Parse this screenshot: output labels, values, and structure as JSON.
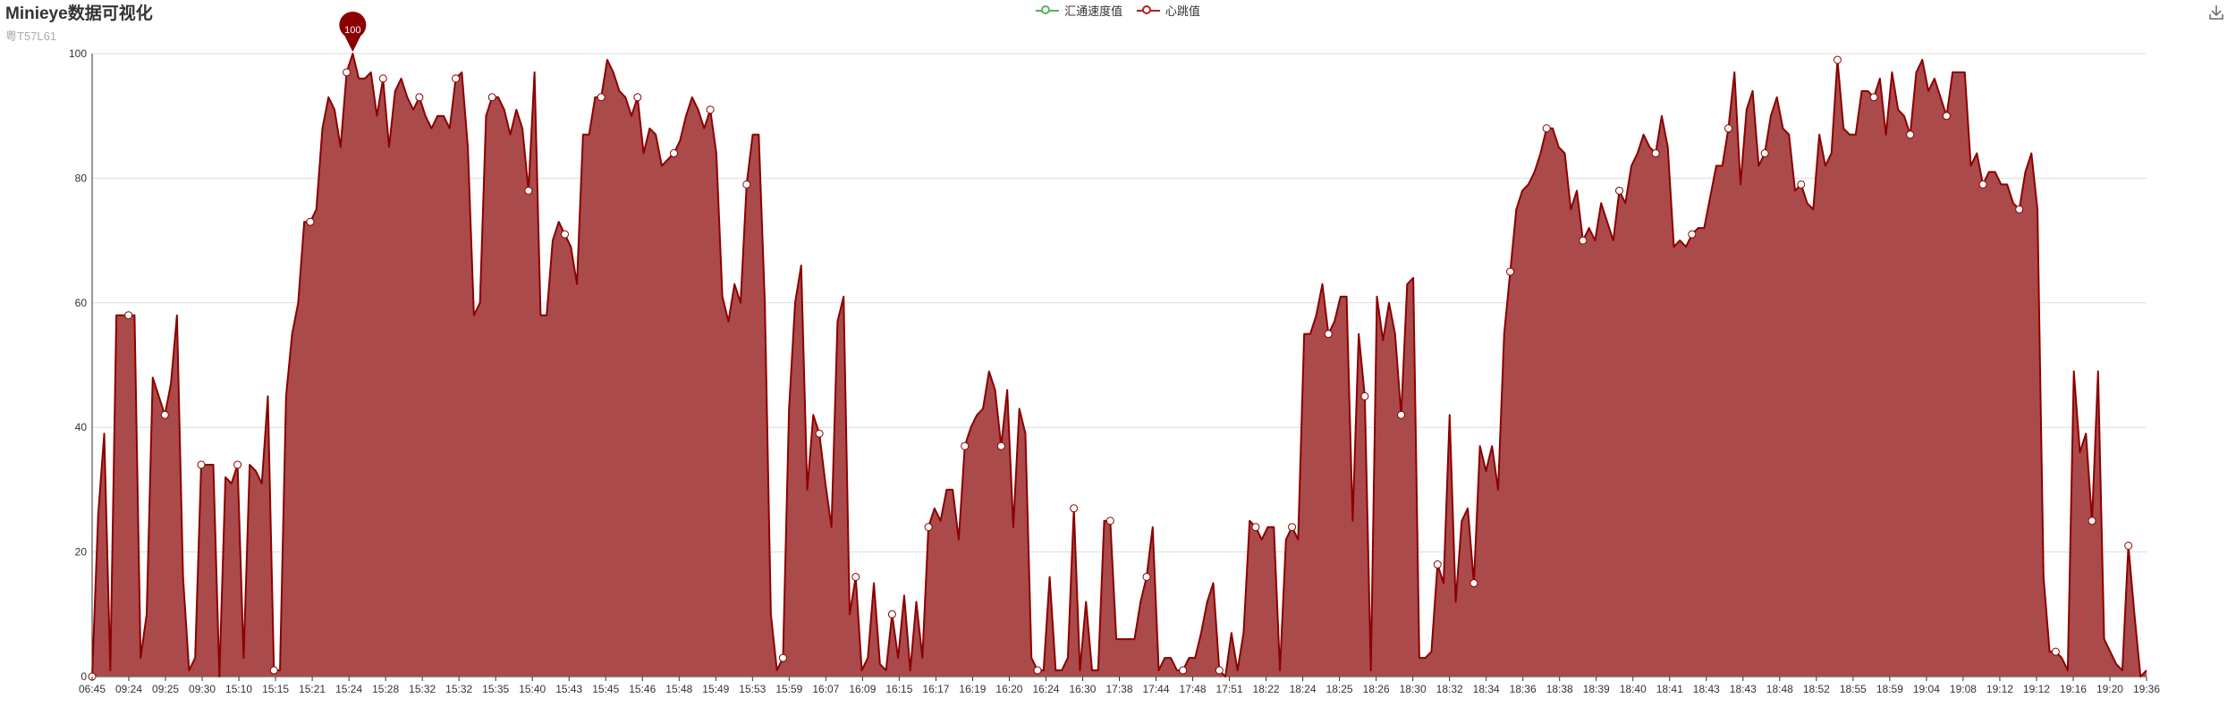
{
  "title": "Minieye数据可视化",
  "subtitle": "粤T57L61",
  "legend": [
    {
      "name": "汇通速度值",
      "color": "#5ab15a"
    },
    {
      "name": "心跳值",
      "color": "#b22222"
    }
  ],
  "toolbox": {
    "download_icon": "download-icon"
  },
  "colors": {
    "area_fill": "#ab4a4a",
    "line": "#8b0000",
    "grid": "#dddddd",
    "marker": "#8b0000"
  },
  "chart_data": {
    "type": "area",
    "title": "Minieye数据可视化",
    "subtitle": "粤T57L61",
    "ylim": [
      0,
      100
    ],
    "yticks": [
      0,
      20,
      40,
      60,
      80,
      100
    ],
    "grid": true,
    "legend_position": "top-center",
    "x_tick_labels": [
      "06:45",
      "09:24",
      "09:25",
      "09:30",
      "15:10",
      "15:15",
      "15:21",
      "15:24",
      "15:28",
      "15:32",
      "15:32",
      "15:35",
      "15:40",
      "15:43",
      "15:45",
      "15:46",
      "15:48",
      "15:49",
      "15:53",
      "15:59",
      "16:07",
      "16:09",
      "16:15",
      "16:17",
      "16:19",
      "16:20",
      "16:24",
      "16:30",
      "17:38",
      "17:44",
      "17:48",
      "17:51",
      "18:22",
      "18:24",
      "18:25",
      "18:26",
      "18:30",
      "18:32",
      "18:34",
      "18:36",
      "18:38",
      "18:39",
      "18:40",
      "18:41",
      "18:43",
      "18:43",
      "18:48",
      "18:52",
      "18:55",
      "18:59",
      "19:04",
      "19:08",
      "19:12",
      "19:12",
      "19:16",
      "19:20",
      "19:36"
    ],
    "series": [
      {
        "name": "汇通速度值",
        "values": []
      },
      {
        "name": "心跳值",
        "values": [
          0,
          26,
          39,
          1,
          58,
          58,
          58,
          58,
          3,
          10,
          48,
          45,
          42,
          47,
          58,
          16,
          1,
          3,
          34,
          34,
          34,
          0,
          32,
          31,
          34,
          3,
          34,
          33,
          31,
          45,
          1,
          1,
          45,
          55,
          60,
          73,
          73,
          75,
          88,
          93,
          91,
          85,
          97,
          100,
          96,
          96,
          97,
          90,
          96,
          85,
          94,
          96,
          93,
          91,
          93,
          90,
          88,
          90,
          90,
          88,
          96,
          97,
          85,
          58,
          60,
          90,
          93,
          93,
          91,
          87,
          91,
          88,
          78,
          97,
          58,
          58,
          70,
          73,
          71,
          69,
          63,
          87,
          87,
          93,
          93,
          99,
          97,
          94,
          93,
          90,
          93,
          84,
          88,
          87,
          82,
          83,
          84,
          86,
          90,
          93,
          91,
          88,
          91,
          84,
          61,
          57,
          63,
          60,
          79,
          87,
          87,
          60,
          10,
          1,
          3,
          43,
          60,
          66,
          30,
          42,
          39,
          31,
          24,
          57,
          61,
          10,
          16,
          1,
          3,
          15,
          2,
          1,
          10,
          3,
          13,
          1,
          12,
          3,
          24,
          27,
          25,
          30,
          30,
          22,
          37,
          40,
          42,
          43,
          49,
          46,
          37,
          46,
          24,
          43,
          39,
          3,
          1,
          1,
          16,
          1,
          1,
          3,
          27,
          1,
          12,
          1,
          1,
          25,
          25,
          6,
          6,
          6,
          6,
          12,
          16,
          24,
          1,
          3,
          3,
          1,
          1,
          3,
          3,
          7,
          12,
          15,
          1,
          0,
          7,
          1,
          7,
          25,
          24,
          22,
          24,
          24,
          1,
          22,
          24,
          22,
          55,
          55,
          58,
          63,
          55,
          57,
          61,
          61,
          25,
          55,
          45,
          1,
          61,
          54,
          60,
          55,
          42,
          63,
          64,
          3,
          3,
          4,
          18,
          15,
          42,
          12,
          25,
          27,
          15,
          37,
          33,
          37,
          30,
          55,
          65,
          75,
          78,
          79,
          81,
          84,
          88,
          88,
          85,
          84,
          75,
          78,
          70,
          72,
          70,
          76,
          73,
          70,
          78,
          76,
          82,
          84,
          87,
          85,
          84,
          90,
          85,
          69,
          70,
          69,
          71,
          72,
          72,
          77,
          82,
          82,
          88,
          97,
          79,
          91,
          94,
          82,
          84,
          90,
          93,
          88,
          87,
          78,
          79,
          76,
          75,
          87,
          82,
          84,
          99,
          88,
          87,
          87,
          94,
          94,
          93,
          96,
          87,
          97,
          91,
          90,
          87,
          97,
          99,
          94,
          96,
          93,
          90,
          97,
          97,
          97,
          82,
          84,
          79,
          81,
          81,
          79,
          79,
          76,
          75,
          81,
          84,
          75,
          16,
          4,
          4,
          3,
          1,
          49,
          36,
          39,
          25,
          49,
          6,
          4,
          2,
          1,
          21,
          10,
          0,
          1
        ]
      }
    ],
    "max_point": {
      "value": 100,
      "label": "100"
    },
    "dot_every": 6
  }
}
